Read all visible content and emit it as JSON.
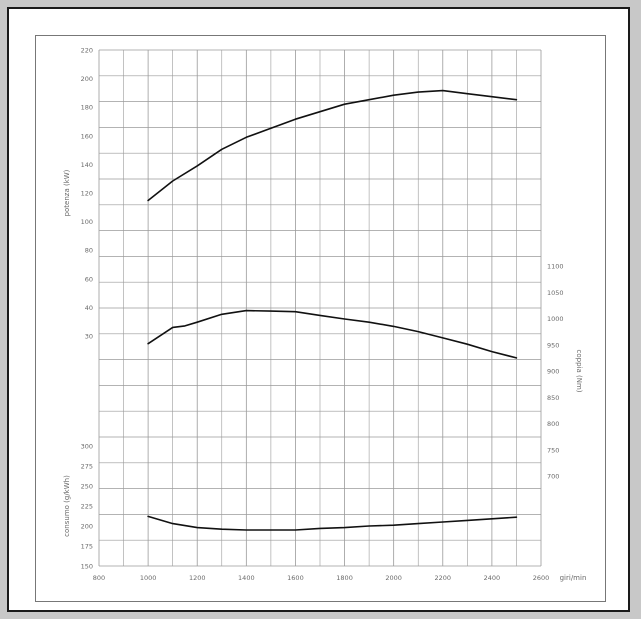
{
  "chart_data": {
    "type": "line",
    "title": "",
    "x": {
      "label": "giri/min",
      "lim": [
        800,
        2600
      ],
      "ticks": [
        "800",
        "1000",
        "1200",
        "1400",
        "1600",
        "1800",
        "2000",
        "2200",
        "2400",
        "2600"
      ]
    },
    "grid": true,
    "panels": [
      {
        "key": "power",
        "ylabel": "potenza (kW)",
        "axis_side": "left",
        "ylim": [
          30,
          220
        ],
        "ticks": [
          "30",
          "40",
          "60",
          "80",
          "100",
          "120",
          "140",
          "160",
          "180",
          "200",
          "220"
        ],
        "series": [
          {
            "x": [
              1000,
              1100,
              1200,
              1300,
              1400,
              1500,
              1600,
              1700,
              1800,
              1900,
              2000,
              2100,
              2200,
              2300,
              2400,
              2500
            ],
            "y": [
              120,
              133,
              143,
              154,
              162,
              168,
              174,
              179,
              184,
              187,
              190,
              192,
              193,
              191,
              189,
              187
            ]
          }
        ]
      },
      {
        "key": "torque",
        "ylabel": "coppia (Nm)",
        "axis_side": "right",
        "ylim": [
          700,
          1100
        ],
        "ticks": [
          "700",
          "750",
          "800",
          "850",
          "900",
          "950",
          "1000",
          "1050",
          "1100"
        ],
        "series": [
          {
            "x": [
              1000,
              1100,
              1150,
              1200,
              1300,
              1400,
              1500,
              1600,
              1700,
              1800,
              1900,
              2000,
              2100,
              2200,
              2300,
              2400,
              2500
            ],
            "y": [
              952,
              983,
              986,
              993,
              1008,
              1015,
              1014,
              1013,
              1006,
              999,
              993,
              985,
              975,
              963,
              951,
              937,
              925
            ]
          }
        ]
      },
      {
        "key": "consumption",
        "ylabel": "consumo (g/kWh)",
        "axis_side": "left",
        "ylim": [
          150,
          300
        ],
        "ticks": [
          "150",
          "175",
          "200",
          "225",
          "250",
          "275",
          "300"
        ],
        "series": [
          {
            "x": [
              1000,
              1100,
              1200,
              1300,
              1400,
              1500,
              1600,
              1700,
              1800,
              1900,
              2000,
              2100,
              2200,
              2300,
              2400,
              2500
            ],
            "y": [
              212,
              203,
              198,
              196,
              195,
              195,
              195,
              197,
              198,
              200,
              201,
              203,
              205,
              207,
              209,
              211
            ]
          }
        ]
      }
    ],
    "colors": {
      "curve": "#111111",
      "grid": "#9a9a9a",
      "text": "#6a6a6a"
    }
  }
}
